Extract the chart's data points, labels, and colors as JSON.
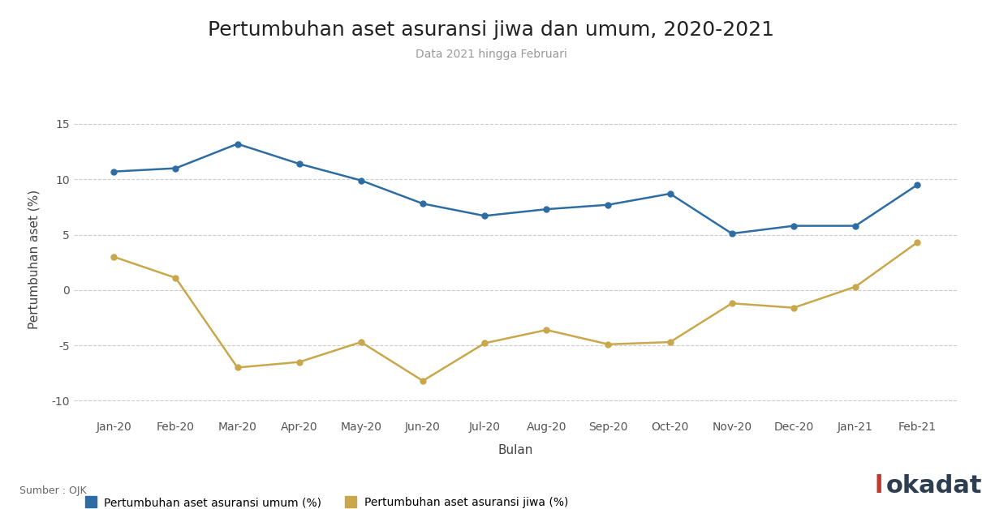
{
  "title": "Pertumbuhan aset asuransi jiwa dan umum, 2020-2021",
  "subtitle": "Data 2021 hingga Februari",
  "xlabel": "Bulan",
  "ylabel": "Pertumbuhan aset (%)",
  "months": [
    "Jan-20",
    "Feb-20",
    "Mar-20",
    "Apr-20",
    "May-20",
    "Jun-20",
    "Jul-20",
    "Aug-20",
    "Sep-20",
    "Oct-20",
    "Nov-20",
    "Dec-20",
    "Jan-21",
    "Feb-21"
  ],
  "umum": [
    10.7,
    11.0,
    13.2,
    11.4,
    9.9,
    7.8,
    6.7,
    7.3,
    7.7,
    8.7,
    5.1,
    5.8,
    5.8,
    9.5
  ],
  "jiwa": [
    3.0,
    1.1,
    -7.0,
    -6.5,
    -4.7,
    -8.2,
    -4.8,
    -3.6,
    -4.9,
    -4.7,
    -1.2,
    -1.6,
    0.3,
    4.3
  ],
  "color_umum": "#2e6da4",
  "color_jiwa": "#c9a84c",
  "ylim": [
    -11.5,
    17.0
  ],
  "yticks": [
    -10,
    -5,
    0,
    5,
    10,
    15
  ],
  "background_color": "#ffffff",
  "grid_color": "#cccccc",
  "legend_umum": "Pertumbuhan aset asuransi umum (%)",
  "legend_jiwa": "Pertumbuhan aset asuransi jiwa (%)",
  "source_text": "Sumber : OJK",
  "title_fontsize": 18,
  "subtitle_fontsize": 10,
  "axis_label_fontsize": 11,
  "tick_fontsize": 10,
  "logo_l_color": "#c0392b",
  "logo_rest_color": "#2c3e50"
}
